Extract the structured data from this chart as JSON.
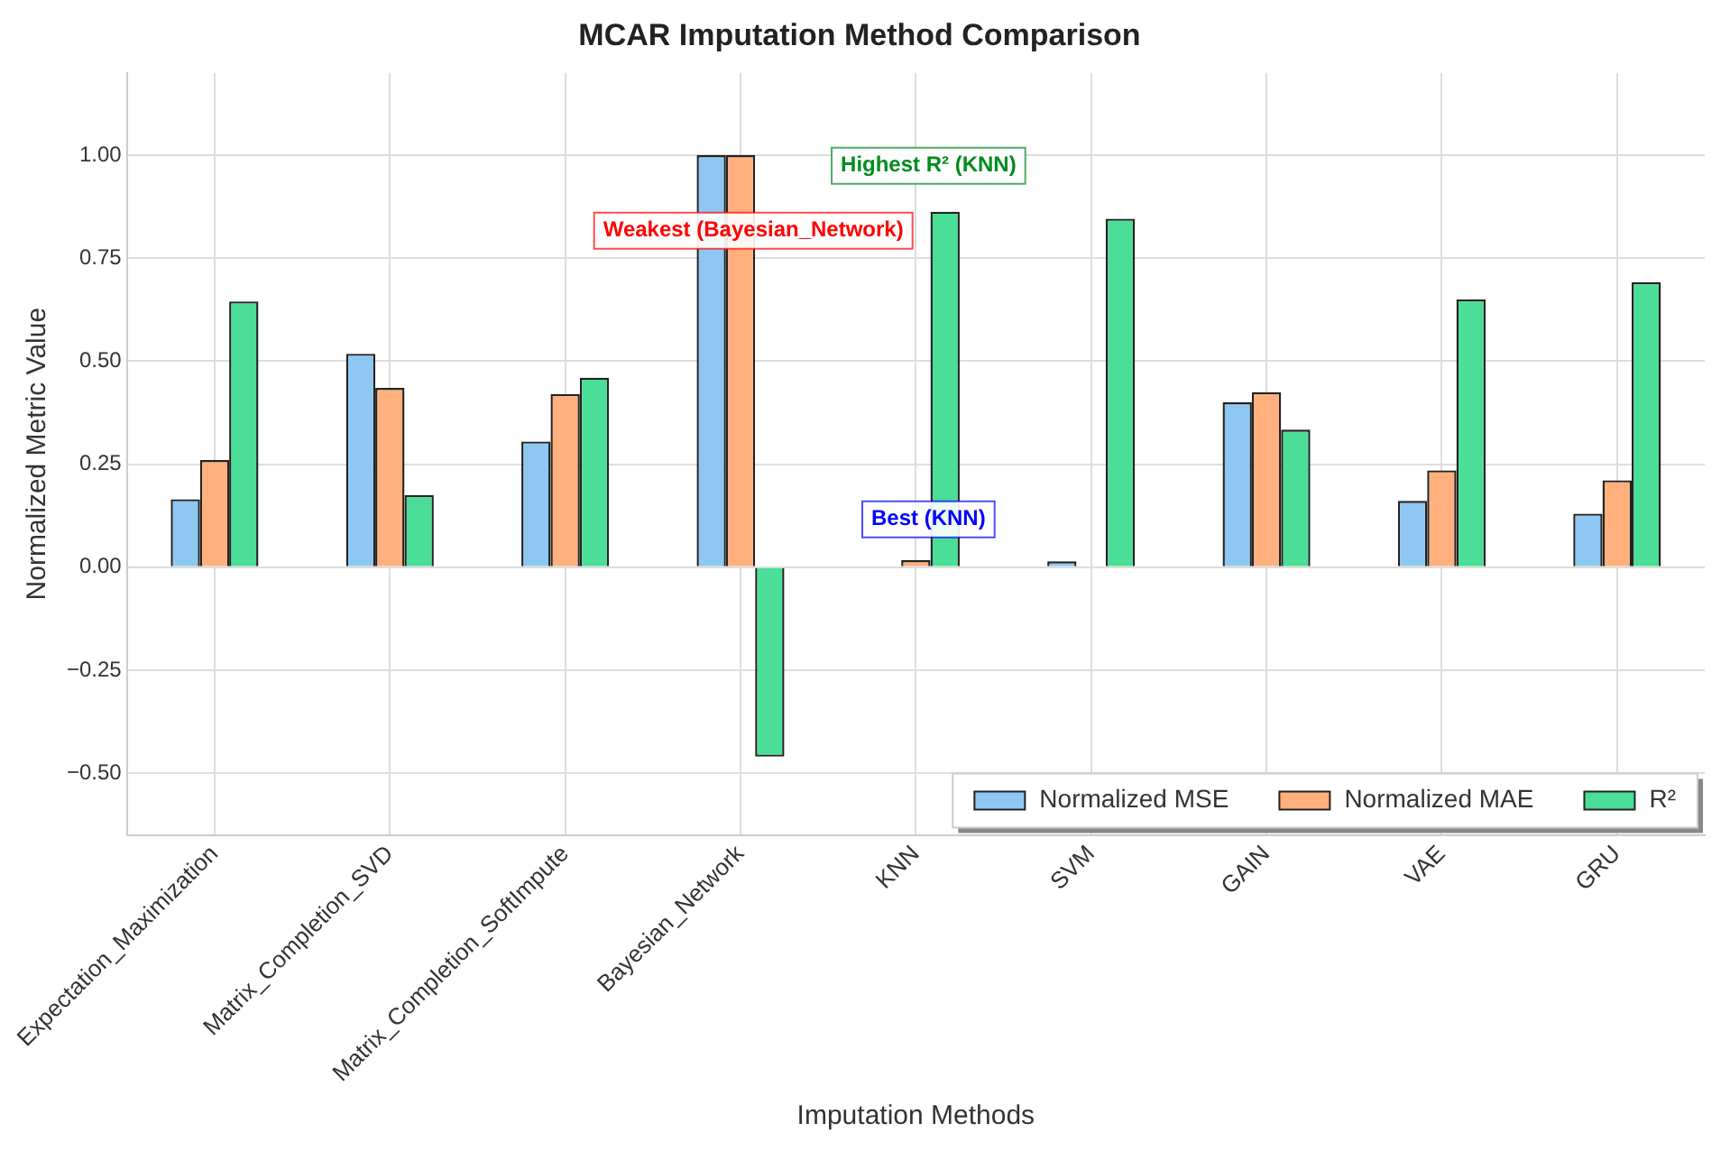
{
  "chart_data": {
    "type": "bar",
    "title": "MCAR Imputation Method Comparison",
    "xlabel": "Imputation Methods",
    "ylabel": "Normalized Metric Value",
    "categories": [
      "Expectation_Maximization",
      "Matrix_Completion_SVD",
      "Matrix_Completion_SoftImpute",
      "Bayesian_Network",
      "KNN",
      "SVM",
      "GAIN",
      "VAE",
      "GRU"
    ],
    "series": [
      {
        "name": "Normalized MSE",
        "color": "#8ec8f2",
        "values": [
          0.165,
          0.518,
          0.305,
          1.0,
          0.0,
          0.014,
          0.4,
          0.161,
          0.13
        ]
      },
      {
        "name": "Normalized MAE",
        "color": "#ffb07c",
        "values": [
          0.26,
          0.435,
          0.42,
          1.0,
          0.017,
          0.0,
          0.425,
          0.235,
          0.211
        ]
      },
      {
        "name": "R²",
        "color": "#4ade96",
        "values": [
          0.645,
          0.175,
          0.46,
          -0.46,
          0.863,
          0.846,
          0.334,
          0.65,
          0.692
        ]
      }
    ],
    "ylim": [
      -0.65,
      1.2
    ],
    "yticks": [
      {
        "value": -0.5,
        "label": "−0.50"
      },
      {
        "value": -0.25,
        "label": "−0.25"
      },
      {
        "value": 0,
        "label": "0.00"
      },
      {
        "value": 0.25,
        "label": "0.25"
      },
      {
        "value": 0.5,
        "label": "0.50"
      },
      {
        "value": 0.75,
        "label": "0.75"
      },
      {
        "value": 1,
        "label": "1.00"
      }
    ],
    "grid": true,
    "legend": "bottom right",
    "annotations": [
      "Weakest (Bayesian_Network)",
      "Highest R² (KNN)",
      "Best (KNN)"
    ]
  }
}
